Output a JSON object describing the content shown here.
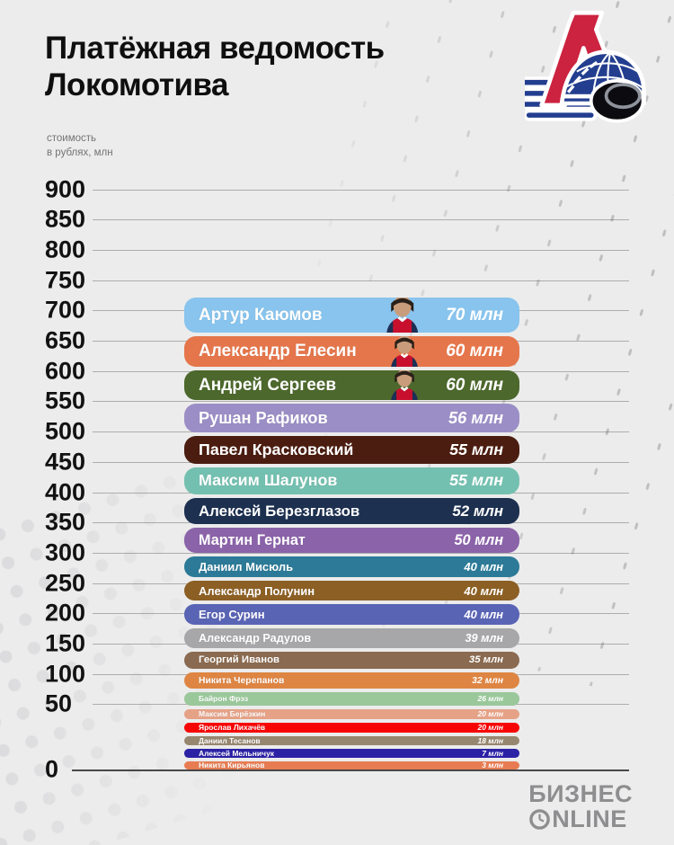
{
  "header": {
    "title": "Платёжная ведомость Локомотива"
  },
  "axis_note": {
    "line1": "стоимость",
    "line2": "в рублях, млн"
  },
  "chart_data": {
    "type": "bar",
    "title": "Платёжная ведомость Локомотива",
    "ylabel": "стоимость в рублях, млн",
    "unit": "млн руб",
    "value_suffix": "млн",
    "ylim": [
      0,
      900
    ],
    "yticks": [
      900,
      850,
      800,
      750,
      700,
      650,
      600,
      550,
      500,
      450,
      400,
      350,
      300,
      250,
      200,
      150,
      100,
      50,
      0
    ],
    "grid": true,
    "legend": "none",
    "players": [
      {
        "name": "Артур Каюмов",
        "value": 70,
        "color": "#88C4ED",
        "has_photo": true
      },
      {
        "name": "Александр Елесин",
        "value": 60,
        "color": "#E5764B",
        "has_photo": true
      },
      {
        "name": "Андрей Сергеев",
        "value": 60,
        "color": "#4C682C",
        "has_photo": true
      },
      {
        "name": "Рушан Рафиков",
        "value": 56,
        "color": "#9B8EC6",
        "has_photo": false
      },
      {
        "name": "Павел Красковский",
        "value": 55,
        "color": "#4B1D10",
        "has_photo": false
      },
      {
        "name": "Максим Шалунов",
        "value": 55,
        "color": "#74C0B0",
        "has_photo": false
      },
      {
        "name": "Алексей Березглазов",
        "value": 52,
        "color": "#1D3050",
        "has_photo": false
      },
      {
        "name": "Мартин Гернат",
        "value": 50,
        "color": "#8B63A9",
        "has_photo": false
      },
      {
        "name": "Даниил Мисюль",
        "value": 40,
        "color": "#2C7A97",
        "has_photo": false
      },
      {
        "name": "Александр Полунин",
        "value": 40,
        "color": "#8C5F24",
        "has_photo": false
      },
      {
        "name": "Егор Сурин",
        "value": 40,
        "color": "#5A64B5",
        "has_photo": false
      },
      {
        "name": "Александр Радулов",
        "value": 39,
        "color": "#A7A7A9",
        "has_photo": false
      },
      {
        "name": "Георгий Иванов",
        "value": 35,
        "color": "#8A6A50",
        "has_photo": false
      },
      {
        "name": "Никита Черепанов",
        "value": 32,
        "color": "#DE8543",
        "has_photo": false
      },
      {
        "name": "Байрон Фрэз",
        "value": 26,
        "color": "#9AC89B",
        "has_photo": false
      },
      {
        "name": "Максим Берёзкин",
        "value": 20,
        "color": "#E6A287",
        "has_photo": false
      },
      {
        "name": "Ярослав Лихачёв",
        "value": 20,
        "color": "#F70505",
        "has_photo": false
      },
      {
        "name": "Даниил Тесанов",
        "value": 18,
        "color": "#97866F",
        "has_photo": false
      },
      {
        "name": "Алексей Мельничук",
        "value": 7,
        "color": "#2B21A5",
        "has_photo": false
      },
      {
        "name": "Никита Кирьянов",
        "value": 3,
        "color": "#E77C52",
        "has_photo": false
      }
    ],
    "accent_colors": {
      "team_red": "#CC2340",
      "team_blue": "#233E8F",
      "media_gray": "#8E8E90"
    }
  },
  "branding": {
    "media_logo_line1": "БИЗНЕС",
    "media_logo_line2": "ONLINE",
    "media_logo_line2_rest": "NLINE"
  }
}
